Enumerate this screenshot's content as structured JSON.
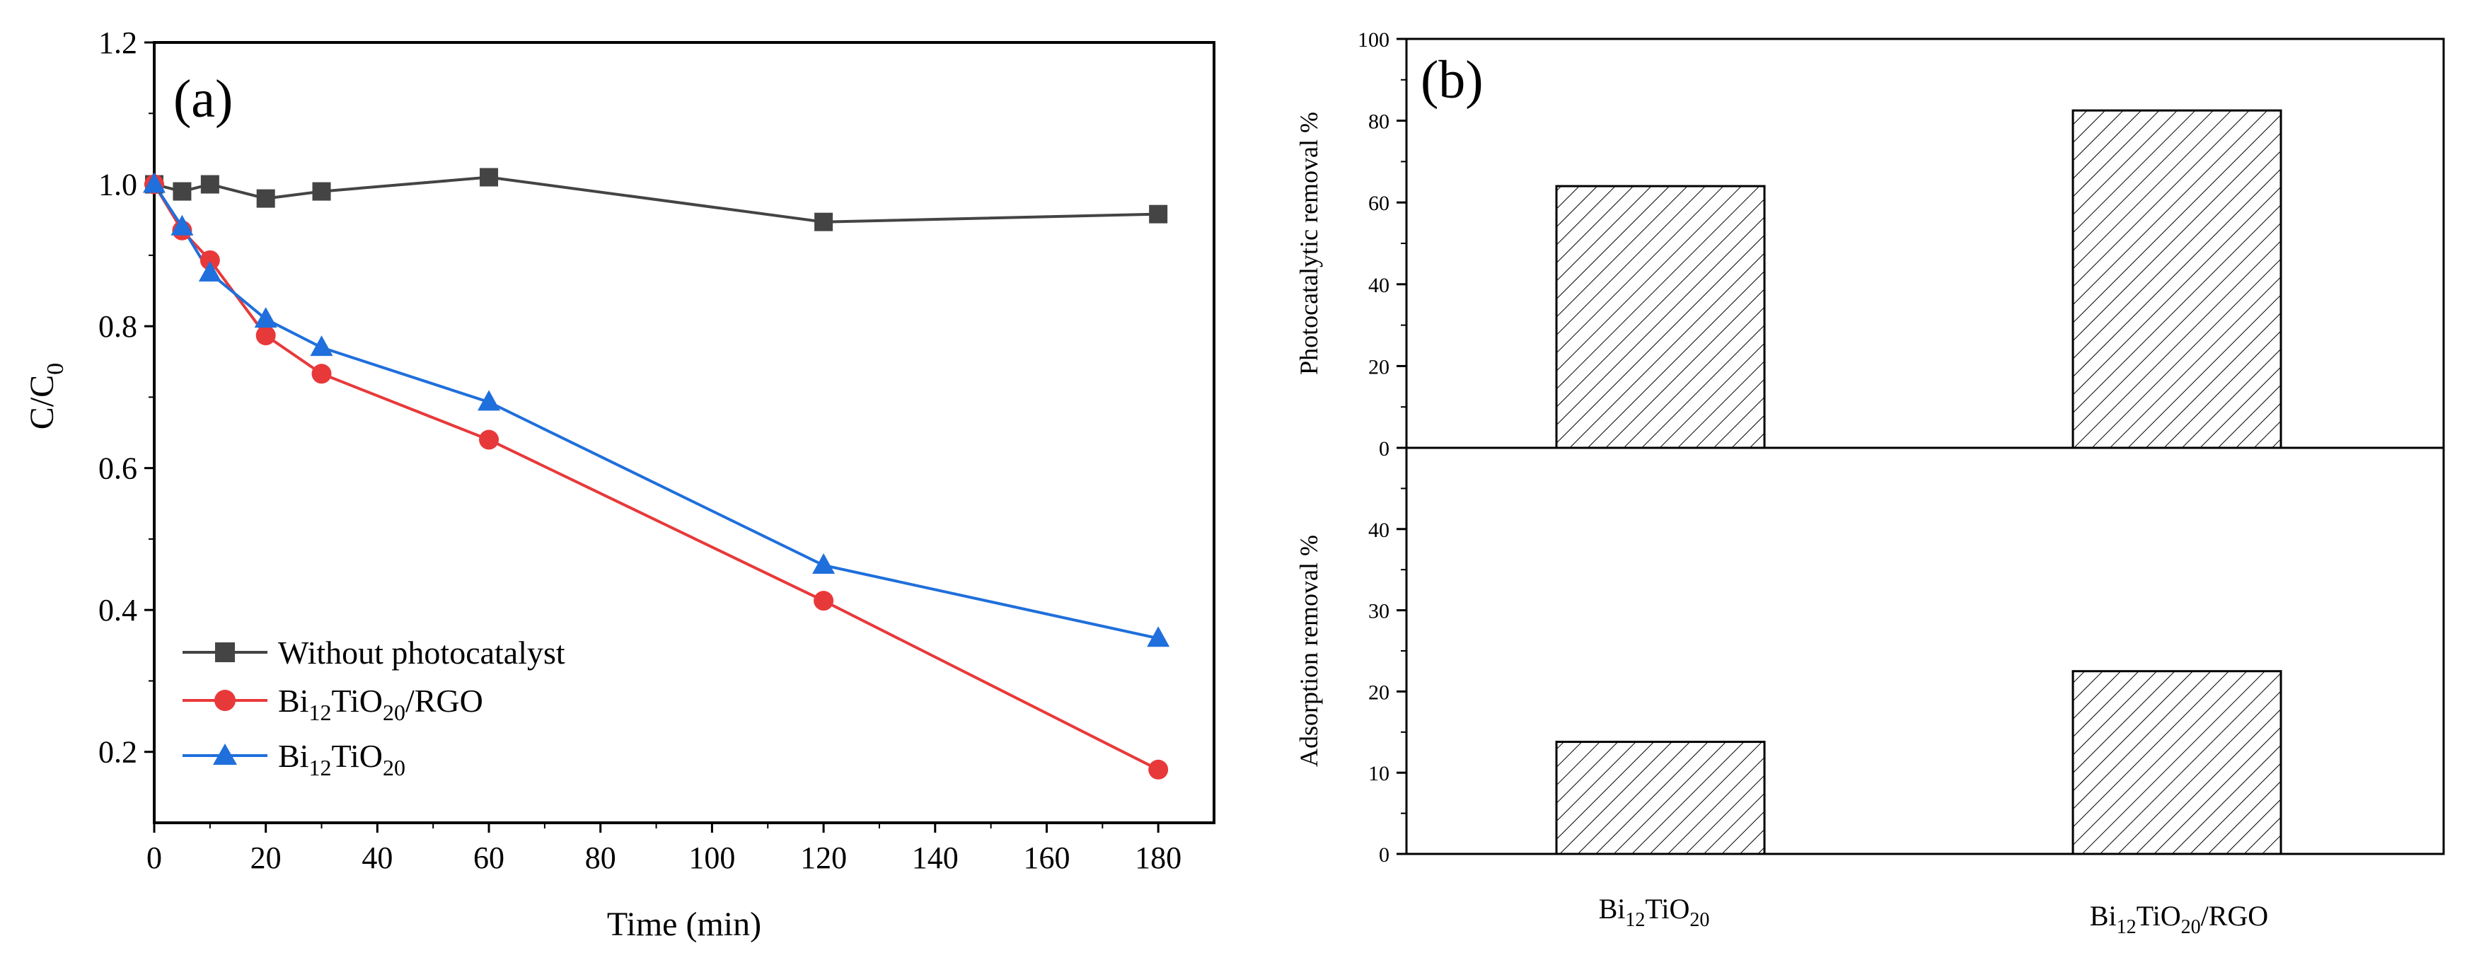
{
  "chart_data": [
    {
      "type": "line",
      "panel_label": "(a)",
      "xlabel": "Time (min)",
      "ylabel": "C/C0",
      "xlim": [
        0,
        190
      ],
      "ylim": [
        0.1,
        1.2
      ],
      "x_ticks": [
        0,
        20,
        40,
        60,
        80,
        100,
        120,
        140,
        160,
        180
      ],
      "y_ticks": [
        0.2,
        0.4,
        0.6,
        0.8,
        1.0,
        1.2
      ],
      "y_tick_labels": [
        "0.2",
        "0.4",
        "0.6",
        "0.8",
        "1.0",
        "1.2"
      ],
      "legend_position": "bottom-left",
      "series": [
        {
          "name": "Without photocatalyst",
          "marker": "square",
          "color": "#444444",
          "x": [
            0,
            5,
            10,
            20,
            30,
            60,
            120,
            180
          ],
          "y": [
            1.0,
            0.99,
            1.0,
            0.98,
            0.99,
            1.01,
            0.947,
            0.958
          ]
        },
        {
          "name": "Bi12TiO20/RGO",
          "marker": "circle",
          "color": "#e8393a",
          "x": [
            0,
            5,
            10,
            20,
            30,
            60,
            120,
            180
          ],
          "y": [
            1.0,
            0.935,
            0.893,
            0.787,
            0.733,
            0.64,
            0.413,
            0.175
          ]
        },
        {
          "name": "Bi12TiO20",
          "marker": "triangle",
          "color": "#1f6fdc",
          "x": [
            0,
            5,
            10,
            20,
            30,
            60,
            120,
            180
          ],
          "y": [
            1.0,
            0.94,
            0.875,
            0.81,
            0.77,
            0.693,
            0.463,
            0.36
          ]
        }
      ]
    },
    {
      "type": "bar",
      "panel_label": "(b)",
      "categories": [
        "Bi12TiO20",
        "Bi12TiO20/RGO"
      ],
      "subplots": [
        {
          "name": "Photocatalytic",
          "ylabel": "Photocatalytic removal %",
          "ylim": [
            0,
            100
          ],
          "y_ticks": [
            0,
            20,
            40,
            60,
            80,
            100
          ],
          "values": [
            64,
            82.5
          ]
        },
        {
          "name": "Adsorption",
          "ylabel": "Adsorption removal %",
          "ylim": [
            0,
            50
          ],
          "y_ticks": [
            0,
            10,
            20,
            30,
            40
          ],
          "values": [
            13.8,
            22.5
          ]
        }
      ]
    }
  ]
}
